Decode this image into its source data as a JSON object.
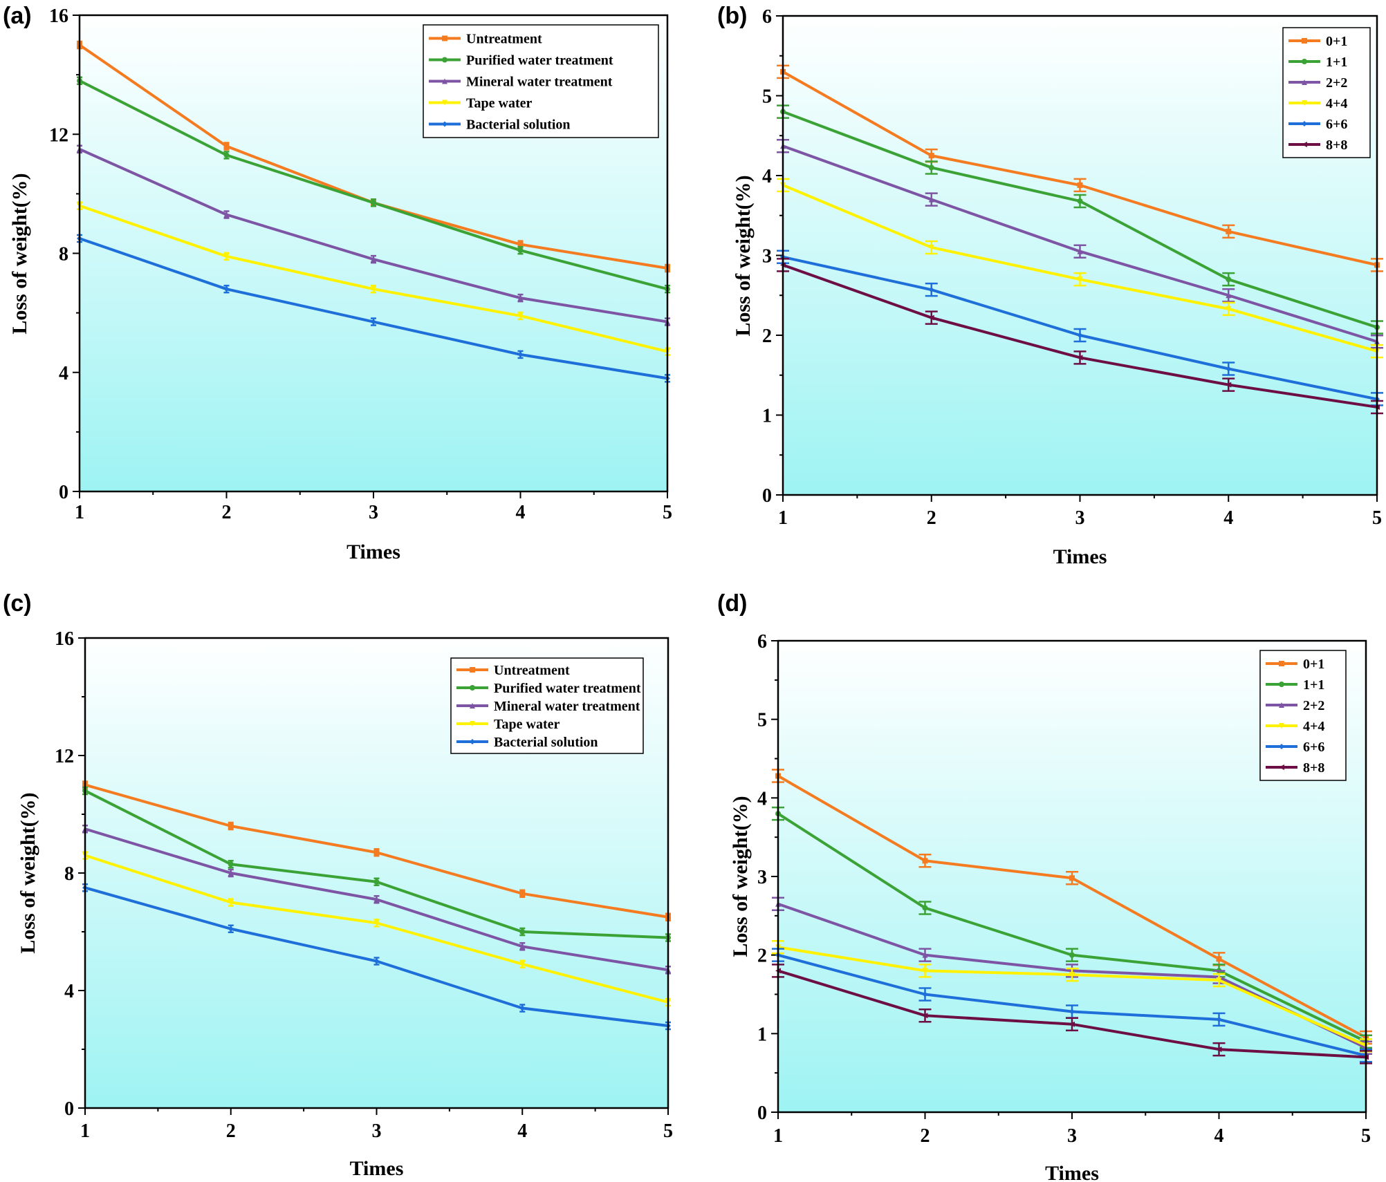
{
  "chart_data": [
    {
      "panel": "(a)",
      "type": "line",
      "xlabel": "Times",
      "ylabel": "Loss of weight(%)",
      "x": [
        1,
        2,
        3,
        4,
        5
      ],
      "xticks": [
        "1",
        "2",
        "3",
        "4",
        "5"
      ],
      "yticks": [
        "0",
        "4",
        "8",
        "12",
        "16"
      ],
      "ylim": [
        0,
        16
      ],
      "legend_position": "top-right",
      "series": [
        {
          "name": "Untreatment",
          "color": "#F47B20",
          "marker": "square",
          "values": [
            15.0,
            11.6,
            9.7,
            8.3,
            7.5
          ]
        },
        {
          "name": "Purified water treatment",
          "color": "#3BA335",
          "marker": "circle",
          "values": [
            13.8,
            11.3,
            9.7,
            8.1,
            6.8
          ]
        },
        {
          "name": "Mineral water treatment",
          "color": "#7D55A4",
          "marker": "triangle-up",
          "values": [
            11.5,
            9.3,
            7.8,
            6.5,
            5.7
          ]
        },
        {
          "name": "Tape water",
          "color": "#FFF200",
          "marker": "triangle-down",
          "values": [
            9.6,
            7.9,
            6.8,
            5.9,
            4.7
          ]
        },
        {
          "name": "Bacterial solution",
          "color": "#1E6FD9",
          "marker": "diamond",
          "values": [
            8.5,
            6.8,
            5.7,
            4.6,
            3.8
          ]
        }
      ]
    },
    {
      "panel": "(b)",
      "type": "line",
      "xlabel": "Times",
      "ylabel": "Loss of weight(%)",
      "x": [
        1,
        2,
        3,
        4,
        5
      ],
      "xticks": [
        "1",
        "2",
        "3",
        "4",
        "5"
      ],
      "yticks": [
        "0",
        "1",
        "2",
        "3",
        "4",
        "5",
        "6"
      ],
      "ylim": [
        0,
        6
      ],
      "legend_position": "top-right",
      "series": [
        {
          "name": "0+1",
          "color": "#F47B20",
          "marker": "square",
          "values": [
            5.3,
            4.25,
            3.88,
            3.3,
            2.88
          ]
        },
        {
          "name": "1+1",
          "color": "#3BA335",
          "marker": "circle",
          "values": [
            4.8,
            4.1,
            3.68,
            2.7,
            2.1
          ]
        },
        {
          "name": "2+2",
          "color": "#7D55A4",
          "marker": "triangle-up",
          "values": [
            4.37,
            3.7,
            3.05,
            2.5,
            1.92
          ]
        },
        {
          "name": "4+4",
          "color": "#FFF200",
          "marker": "triangle-down",
          "values": [
            3.88,
            3.1,
            2.7,
            2.33,
            1.8
          ]
        },
        {
          "name": "6+6",
          "color": "#1E6FD9",
          "marker": "diamond",
          "values": [
            2.98,
            2.57,
            2.0,
            1.58,
            1.2
          ]
        },
        {
          "name": "8+8",
          "color": "#6D0F45",
          "marker": "triangle-left",
          "values": [
            2.88,
            2.22,
            1.72,
            1.38,
            1.1
          ]
        }
      ]
    },
    {
      "panel": "(c)",
      "type": "line",
      "xlabel": "Times",
      "ylabel": "Loss of weight(%)",
      "x": [
        1,
        2,
        3,
        4,
        5
      ],
      "xticks": [
        "1",
        "2",
        "3",
        "4",
        "5"
      ],
      "yticks": [
        "0",
        "4",
        "8",
        "12",
        "16"
      ],
      "ylim": [
        0,
        16
      ],
      "legend_position": "top-right",
      "series": [
        {
          "name": "Untreatment",
          "color": "#F47B20",
          "marker": "square",
          "values": [
            11.0,
            9.6,
            8.7,
            7.3,
            6.5
          ]
        },
        {
          "name": "Purified water treatment",
          "color": "#3BA335",
          "marker": "circle",
          "values": [
            10.8,
            8.3,
            7.7,
            6.0,
            5.8
          ]
        },
        {
          "name": "Mineral water treatment",
          "color": "#7D55A4",
          "marker": "triangle-up",
          "values": [
            9.5,
            8.0,
            7.1,
            5.5,
            4.7
          ]
        },
        {
          "name": "Tape water",
          "color": "#FFF200",
          "marker": "triangle-down",
          "values": [
            8.6,
            7.0,
            6.3,
            4.9,
            3.6
          ]
        },
        {
          "name": "Bacterial solution",
          "color": "#1E6FD9",
          "marker": "diamond",
          "values": [
            7.5,
            6.1,
            5.0,
            3.4,
            2.8
          ]
        }
      ]
    },
    {
      "panel": "(d)",
      "type": "line",
      "xlabel": "Times",
      "ylabel": "Loss of weight(%)",
      "x": [
        1,
        2,
        3,
        4,
        5
      ],
      "xticks": [
        "1",
        "2",
        "3",
        "4",
        "5"
      ],
      "yticks": [
        "0",
        "1",
        "2",
        "3",
        "4",
        "5",
        "6"
      ],
      "ylim": [
        0,
        6
      ],
      "legend_position": "top-right",
      "series": [
        {
          "name": "0+1",
          "color": "#F47B20",
          "marker": "square",
          "values": [
            4.28,
            3.2,
            2.98,
            1.95,
            0.95
          ]
        },
        {
          "name": "1+1",
          "color": "#3BA335",
          "marker": "circle",
          "values": [
            3.8,
            2.6,
            2.0,
            1.8,
            0.9
          ]
        },
        {
          "name": "2+2",
          "color": "#7D55A4",
          "marker": "triangle-up",
          "values": [
            2.65,
            2.0,
            1.8,
            1.72,
            0.82
          ]
        },
        {
          "name": "4+4",
          "color": "#FFF200",
          "marker": "triangle-down",
          "values": [
            2.1,
            1.8,
            1.75,
            1.68,
            0.85
          ]
        },
        {
          "name": "6+6",
          "color": "#1E6FD9",
          "marker": "diamond",
          "values": [
            2.0,
            1.5,
            1.28,
            1.18,
            0.72
          ]
        },
        {
          "name": "8+8",
          "color": "#6D0F45",
          "marker": "triangle-left",
          "values": [
            1.8,
            1.23,
            1.12,
            0.8,
            0.7
          ]
        }
      ]
    }
  ]
}
